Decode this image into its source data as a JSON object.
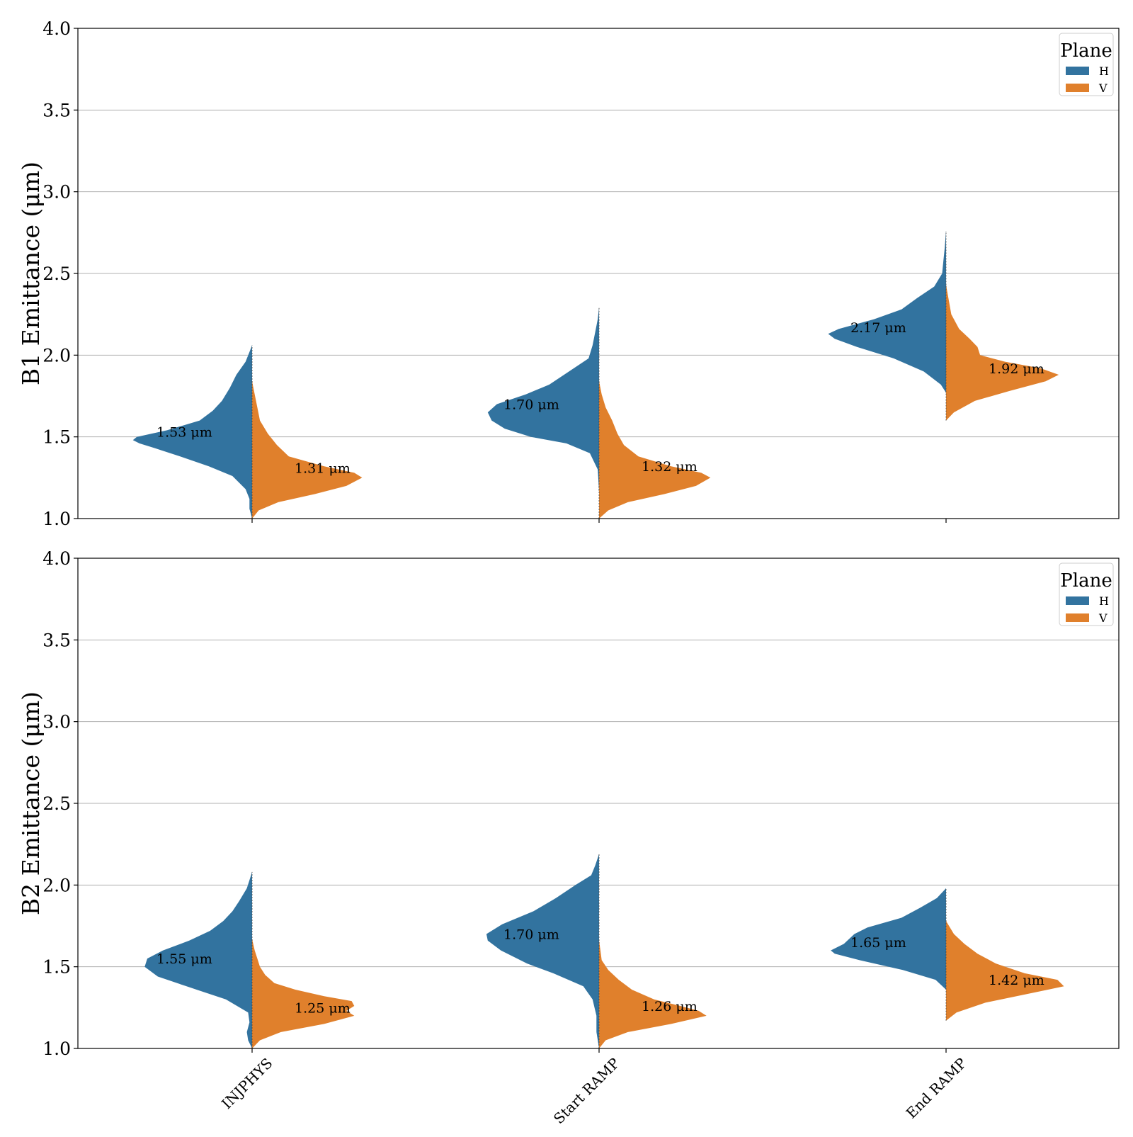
{
  "colors": {
    "H": "#32739f",
    "V": "#e0802c",
    "grid": "#b0b0b0",
    "axis": "#000000"
  },
  "chart_data": [
    {
      "type": "violin",
      "ylabel": "B1 Emittance (μm)",
      "ylim": [
        1.0,
        4.0
      ],
      "yticks": [
        "1.0",
        "1.5",
        "2.0",
        "2.5",
        "3.0",
        "3.5",
        "4.0"
      ],
      "grid": "horizontal",
      "legend": {
        "title": "Plane",
        "position": "top-right",
        "entries": [
          "H",
          "V"
        ]
      },
      "categories": [
        "INJPHYS",
        "Start RAMP",
        "End RAMP"
      ],
      "series": [
        {
          "name": "H",
          "medians": [
            1.53,
            1.7,
            2.17
          ],
          "labels": [
            "1.53 μm",
            "1.70 μm",
            "2.17 μm"
          ],
          "ranges": [
            [
              1.0,
              2.06
            ],
            [
              1.17,
              2.29
            ],
            [
              1.77,
              2.76
            ]
          ],
          "profiles": [
            [
              [
                1.0,
                0.0
              ],
              [
                1.06,
                0.02
              ],
              [
                1.12,
                0.02
              ],
              [
                1.18,
                0.05
              ],
              [
                1.26,
                0.15
              ],
              [
                1.32,
                0.33
              ],
              [
                1.38,
                0.55
              ],
              [
                1.43,
                0.74
              ],
              [
                1.46,
                0.86
              ],
              [
                1.48,
                0.91
              ],
              [
                1.5,
                0.88
              ],
              [
                1.54,
                0.65
              ],
              [
                1.6,
                0.4
              ],
              [
                1.66,
                0.3
              ],
              [
                1.72,
                0.23
              ],
              [
                1.8,
                0.17
              ],
              [
                1.88,
                0.12
              ],
              [
                1.96,
                0.05
              ],
              [
                2.06,
                0.0
              ]
            ],
            [
              [
                1.17,
                0.0
              ],
              [
                1.3,
                0.01
              ],
              [
                1.4,
                0.07
              ],
              [
                1.46,
                0.25
              ],
              [
                1.5,
                0.52
              ],
              [
                1.55,
                0.72
              ],
              [
                1.6,
                0.82
              ],
              [
                1.65,
                0.85
              ],
              [
                1.7,
                0.78
              ],
              [
                1.76,
                0.56
              ],
              [
                1.82,
                0.38
              ],
              [
                1.9,
                0.23
              ],
              [
                1.98,
                0.08
              ],
              [
                2.06,
                0.05
              ],
              [
                2.14,
                0.03
              ],
              [
                2.22,
                0.01
              ],
              [
                2.29,
                0.0
              ]
            ],
            [
              [
                1.77,
                0.0
              ],
              [
                1.82,
                0.04
              ],
              [
                1.9,
                0.17
              ],
              [
                1.98,
                0.4
              ],
              [
                2.05,
                0.68
              ],
              [
                2.1,
                0.85
              ],
              [
                2.13,
                0.9
              ],
              [
                2.16,
                0.82
              ],
              [
                2.22,
                0.55
              ],
              [
                2.28,
                0.34
              ],
              [
                2.35,
                0.22
              ],
              [
                2.42,
                0.09
              ],
              [
                2.5,
                0.03
              ],
              [
                2.58,
                0.02
              ],
              [
                2.66,
                0.01
              ],
              [
                2.76,
                0.0
              ]
            ]
          ]
        },
        {
          "name": "V",
          "medians": [
            1.31,
            1.32,
            1.92
          ],
          "labels": [
            "1.31 μm",
            "1.32 μm",
            "1.92 μm"
          ],
          "ranges": [
            [
              1.0,
              1.84
            ],
            [
              1.0,
              1.84
            ],
            [
              1.6,
              2.43
            ]
          ],
          "profiles": [
            [
              [
                1.0,
                0.0
              ],
              [
                1.05,
                0.05
              ],
              [
                1.1,
                0.2
              ],
              [
                1.15,
                0.48
              ],
              [
                1.2,
                0.72
              ],
              [
                1.25,
                0.84
              ],
              [
                1.28,
                0.78
              ],
              [
                1.32,
                0.55
              ],
              [
                1.38,
                0.28
              ],
              [
                1.45,
                0.19
              ],
              [
                1.52,
                0.12
              ],
              [
                1.6,
                0.06
              ],
              [
                1.68,
                0.04
              ],
              [
                1.76,
                0.02
              ],
              [
                1.84,
                0.0
              ]
            ],
            [
              [
                1.0,
                0.0
              ],
              [
                1.05,
                0.07
              ],
              [
                1.1,
                0.22
              ],
              [
                1.15,
                0.5
              ],
              [
                1.2,
                0.74
              ],
              [
                1.25,
                0.85
              ],
              [
                1.28,
                0.78
              ],
              [
                1.32,
                0.55
              ],
              [
                1.38,
                0.3
              ],
              [
                1.45,
                0.19
              ],
              [
                1.52,
                0.14
              ],
              [
                1.6,
                0.1
              ],
              [
                1.68,
                0.05
              ],
              [
                1.76,
                0.02
              ],
              [
                1.84,
                0.0
              ]
            ],
            [
              [
                1.6,
                0.0
              ],
              [
                1.65,
                0.06
              ],
              [
                1.72,
                0.22
              ],
              [
                1.78,
                0.48
              ],
              [
                1.84,
                0.76
              ],
              [
                1.88,
                0.86
              ],
              [
                1.92,
                0.72
              ],
              [
                1.96,
                0.45
              ],
              [
                2.0,
                0.26
              ],
              [
                2.05,
                0.24
              ],
              [
                2.1,
                0.18
              ],
              [
                2.16,
                0.1
              ],
              [
                2.25,
                0.04
              ],
              [
                2.34,
                0.02
              ],
              [
                2.43,
                0.0
              ]
            ]
          ]
        }
      ]
    },
    {
      "type": "violin",
      "ylabel": "B2 Emittance (μm)",
      "ylim": [
        1.0,
        4.0
      ],
      "yticks": [
        "1.0",
        "1.5",
        "2.0",
        "2.5",
        "3.0",
        "3.5",
        "4.0"
      ],
      "grid": "horizontal",
      "legend": {
        "title": "Plane",
        "position": "top-right",
        "entries": [
          "H",
          "V"
        ]
      },
      "categories": [
        "INJPHYS",
        "Start RAMP",
        "End RAMP"
      ],
      "series": [
        {
          "name": "H",
          "medians": [
            1.55,
            1.7,
            1.65
          ],
          "labels": [
            "1.55 μm",
            "1.70 μm",
            "1.65 μm"
          ],
          "ranges": [
            [
              1.0,
              2.08
            ],
            [
              1.0,
              2.19
            ],
            [
              1.36,
              1.98
            ]
          ],
          "profiles": [
            [
              [
                1.0,
                0.0
              ],
              [
                1.05,
                0.03
              ],
              [
                1.1,
                0.04
              ],
              [
                1.16,
                0.02
              ],
              [
                1.22,
                0.03
              ],
              [
                1.3,
                0.2
              ],
              [
                1.38,
                0.5
              ],
              [
                1.44,
                0.72
              ],
              [
                1.5,
                0.82
              ],
              [
                1.55,
                0.8
              ],
              [
                1.6,
                0.68
              ],
              [
                1.66,
                0.48
              ],
              [
                1.72,
                0.32
              ],
              [
                1.78,
                0.22
              ],
              [
                1.84,
                0.15
              ],
              [
                1.9,
                0.1
              ],
              [
                1.98,
                0.04
              ],
              [
                2.08,
                0.0
              ]
            ],
            [
              [
                1.0,
                0.0
              ],
              [
                1.1,
                0.02
              ],
              [
                1.2,
                0.02
              ],
              [
                1.3,
                0.05
              ],
              [
                1.38,
                0.12
              ],
              [
                1.46,
                0.35
              ],
              [
                1.52,
                0.55
              ],
              [
                1.6,
                0.75
              ],
              [
                1.66,
                0.85
              ],
              [
                1.7,
                0.86
              ],
              [
                1.76,
                0.74
              ],
              [
                1.84,
                0.5
              ],
              [
                1.92,
                0.33
              ],
              [
                2.0,
                0.18
              ],
              [
                2.06,
                0.06
              ],
              [
                2.12,
                0.03
              ],
              [
                2.19,
                0.0
              ]
            ],
            [
              [
                1.36,
                0.0
              ],
              [
                1.42,
                0.08
              ],
              [
                1.48,
                0.33
              ],
              [
                1.54,
                0.66
              ],
              [
                1.58,
                0.85
              ],
              [
                1.6,
                0.88
              ],
              [
                1.64,
                0.78
              ],
              [
                1.7,
                0.7
              ],
              [
                1.74,
                0.6
              ],
              [
                1.8,
                0.34
              ],
              [
                1.86,
                0.2
              ],
              [
                1.92,
                0.07
              ],
              [
                1.98,
                0.0
              ]
            ]
          ]
        },
        {
          "name": "V",
          "medians": [
            1.25,
            1.26,
            1.42
          ],
          "labels": [
            "1.25 μm",
            "1.26 μm",
            "1.42 μm"
          ],
          "ranges": [
            [
              1.0,
              1.67
            ],
            [
              1.0,
              1.66
            ],
            [
              1.17,
              1.78
            ]
          ],
          "profiles": [
            [
              [
                1.0,
                0.0
              ],
              [
                1.05,
                0.06
              ],
              [
                1.1,
                0.22
              ],
              [
                1.15,
                0.55
              ],
              [
                1.2,
                0.78
              ],
              [
                1.23,
                0.72
              ],
              [
                1.26,
                0.78
              ],
              [
                1.29,
                0.76
              ],
              [
                1.32,
                0.55
              ],
              [
                1.36,
                0.33
              ],
              [
                1.4,
                0.17
              ],
              [
                1.45,
                0.1
              ],
              [
                1.5,
                0.06
              ],
              [
                1.55,
                0.04
              ],
              [
                1.6,
                0.02
              ],
              [
                1.67,
                0.0
              ]
            ],
            [
              [
                1.0,
                0.0
              ],
              [
                1.05,
                0.05
              ],
              [
                1.1,
                0.22
              ],
              [
                1.15,
                0.55
              ],
              [
                1.2,
                0.82
              ],
              [
                1.23,
                0.76
              ],
              [
                1.26,
                0.62
              ],
              [
                1.3,
                0.42
              ],
              [
                1.36,
                0.25
              ],
              [
                1.42,
                0.15
              ],
              [
                1.48,
                0.07
              ],
              [
                1.54,
                0.02
              ],
              [
                1.6,
                0.01
              ],
              [
                1.66,
                0.0
              ]
            ],
            [
              [
                1.17,
                0.0
              ],
              [
                1.22,
                0.08
              ],
              [
                1.28,
                0.3
              ],
              [
                1.33,
                0.6
              ],
              [
                1.38,
                0.9
              ],
              [
                1.42,
                0.85
              ],
              [
                1.46,
                0.6
              ],
              [
                1.52,
                0.38
              ],
              [
                1.58,
                0.24
              ],
              [
                1.64,
                0.14
              ],
              [
                1.7,
                0.06
              ],
              [
                1.78,
                0.0
              ]
            ]
          ]
        }
      ]
    }
  ]
}
